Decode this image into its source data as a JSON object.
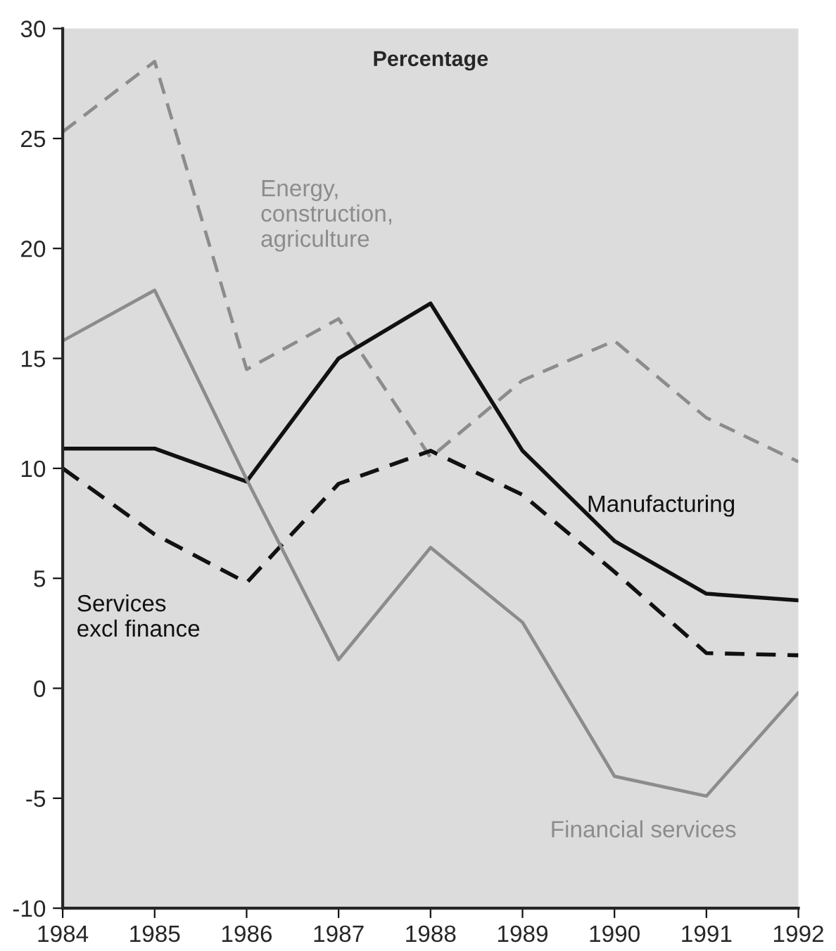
{
  "chart_data": {
    "type": "line",
    "ylabel": "Percentage",
    "x": [
      1984,
      1985,
      1986,
      1987,
      1988,
      1989,
      1990,
      1991,
      1992
    ],
    "series": [
      {
        "name": "Energy, construction, agriculture",
        "color": "#8c8c8c",
        "line_style": "dashed",
        "values": [
          25.3,
          28.5,
          14.5,
          16.8,
          10.5,
          14.0,
          15.8,
          12.3,
          10.3
        ]
      },
      {
        "name": "Manufacturing",
        "color": "#111111",
        "line_style": "solid",
        "values": [
          10.9,
          10.9,
          9.4,
          15.0,
          17.5,
          10.8,
          6.7,
          4.3,
          4.0
        ]
      },
      {
        "name": "Services excl finance",
        "color": "#111111",
        "line_style": "dashed",
        "values": [
          10.0,
          7.0,
          4.8,
          9.3,
          10.8,
          8.8,
          5.3,
          1.6,
          1.5
        ]
      },
      {
        "name": "Financial services",
        "color": "#8c8c8c",
        "line_style": "solid",
        "values": [
          15.8,
          18.1,
          9.5,
          1.3,
          6.4,
          3.0,
          -4.0,
          -4.9,
          -0.2
        ]
      }
    ],
    "xlim": [
      1984,
      1992
    ],
    "xticks": [
      1984,
      1985,
      1986,
      1987,
      1988,
      1989,
      1990,
      1991,
      1992
    ],
    "ylim": [
      -10,
      30
    ],
    "yticks": [
      -10,
      -5,
      0,
      5,
      10,
      15,
      20,
      25,
      30
    ],
    "grid": false,
    "legend": false,
    "marker": "none"
  }
}
